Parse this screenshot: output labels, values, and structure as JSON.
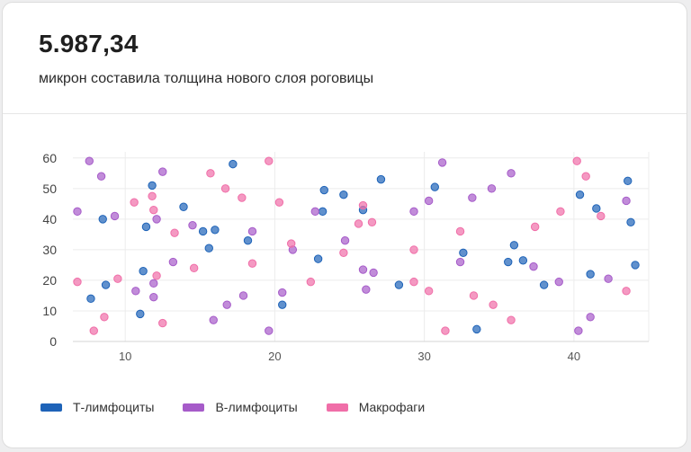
{
  "kpi": {
    "value": "5.987,34",
    "caption": "микрон составила толщина нового слоя роговицы"
  },
  "colors": {
    "t_cells": "#1e63b8",
    "b_cells": "#a65bc9",
    "macrophages": "#f06ea8"
  },
  "chart_data": {
    "type": "scatter",
    "title": "",
    "xlabel": "",
    "ylabel": "",
    "xlim": [
      6.5,
      45
    ],
    "ylim": [
      0,
      62
    ],
    "xticks": [
      10,
      20,
      30,
      40
    ],
    "yticks": [
      0,
      10,
      20,
      30,
      40,
      50,
      60
    ],
    "grid": true,
    "legend": "bottom-left",
    "series": [
      {
        "name": "Т-лимфоциты",
        "color": "#1e63b8",
        "points": [
          [
            7.7,
            14
          ],
          [
            8.5,
            40
          ],
          [
            8.7,
            18.5
          ],
          [
            11,
            9
          ],
          [
            11.2,
            23
          ],
          [
            11.4,
            37.5
          ],
          [
            11.8,
            51
          ],
          [
            13.9,
            44
          ],
          [
            15.2,
            36
          ],
          [
            15.6,
            30.5
          ],
          [
            16.0,
            36.5
          ],
          [
            17.2,
            58
          ],
          [
            18.2,
            33
          ],
          [
            20.5,
            12
          ],
          [
            22.9,
            27
          ],
          [
            23.2,
            42.5
          ],
          [
            23.3,
            49.5
          ],
          [
            24.6,
            48
          ],
          [
            25.9,
            43
          ],
          [
            27.1,
            53
          ],
          [
            28.3,
            18.5
          ],
          [
            30.7,
            50.5
          ],
          [
            32.6,
            29
          ],
          [
            33.5,
            4
          ],
          [
            35.6,
            26
          ],
          [
            36.0,
            31.5
          ],
          [
            36.6,
            26.5
          ],
          [
            38.0,
            18.5
          ],
          [
            40.4,
            48
          ],
          [
            41.1,
            22
          ],
          [
            41.5,
            43.5
          ],
          [
            43.6,
            52.5
          ],
          [
            43.8,
            39
          ],
          [
            44.1,
            25
          ]
        ]
      },
      {
        "name": "В-лимфоциты",
        "color": "#a65bc9",
        "points": [
          [
            6.8,
            42.5
          ],
          [
            7.6,
            59
          ],
          [
            8.4,
            54
          ],
          [
            9.3,
            41
          ],
          [
            10.7,
            16.5
          ],
          [
            11.9,
            19
          ],
          [
            11.9,
            14.5
          ],
          [
            12.1,
            40
          ],
          [
            12.5,
            55.5
          ],
          [
            13.2,
            26
          ],
          [
            14.5,
            38
          ],
          [
            15.9,
            7
          ],
          [
            16.8,
            12
          ],
          [
            17.9,
            15
          ],
          [
            18.5,
            36
          ],
          [
            19.6,
            3.5
          ],
          [
            20.5,
            16
          ],
          [
            21.2,
            30
          ],
          [
            22.7,
            42.5
          ],
          [
            24.7,
            33
          ],
          [
            25.9,
            23.5
          ],
          [
            26.1,
            17
          ],
          [
            26.6,
            22.5
          ],
          [
            29.3,
            42.5
          ],
          [
            30.3,
            46
          ],
          [
            31.2,
            58.5
          ],
          [
            32.4,
            26
          ],
          [
            33.2,
            47
          ],
          [
            34.5,
            50
          ],
          [
            35.8,
            55
          ],
          [
            37.3,
            24.5
          ],
          [
            39.0,
            19.5
          ],
          [
            40.3,
            3.5
          ],
          [
            41.1,
            8
          ],
          [
            42.3,
            20.5
          ],
          [
            43.5,
            46
          ]
        ]
      },
      {
        "name": "Макрофаги",
        "color": "#f06ea8",
        "points": [
          [
            6.8,
            19.5
          ],
          [
            7.9,
            3.5
          ],
          [
            8.6,
            8
          ],
          [
            9.5,
            20.5
          ],
          [
            10.6,
            45.5
          ],
          [
            11.8,
            47.5
          ],
          [
            11.9,
            43
          ],
          [
            12.1,
            21.5
          ],
          [
            12.5,
            6
          ],
          [
            13.3,
            35.5
          ],
          [
            14.6,
            24
          ],
          [
            15.7,
            55
          ],
          [
            16.7,
            50
          ],
          [
            17.8,
            47
          ],
          [
            18.5,
            25.5
          ],
          [
            19.6,
            59
          ],
          [
            20.3,
            45.5
          ],
          [
            21.1,
            32
          ],
          [
            22.4,
            19.5
          ],
          [
            24.6,
            29
          ],
          [
            25.6,
            38.5
          ],
          [
            25.9,
            44.5
          ],
          [
            26.5,
            39
          ],
          [
            29.3,
            19.5
          ],
          [
            29.3,
            30
          ],
          [
            30.3,
            16.5
          ],
          [
            31.4,
            3.5
          ],
          [
            32.4,
            36
          ],
          [
            33.3,
            15
          ],
          [
            34.6,
            12
          ],
          [
            35.8,
            7
          ],
          [
            37.4,
            37.5
          ],
          [
            39.1,
            42.5
          ],
          [
            40.2,
            59
          ],
          [
            40.8,
            54
          ],
          [
            41.8,
            41
          ],
          [
            43.5,
            16.5
          ]
        ]
      }
    ]
  }
}
